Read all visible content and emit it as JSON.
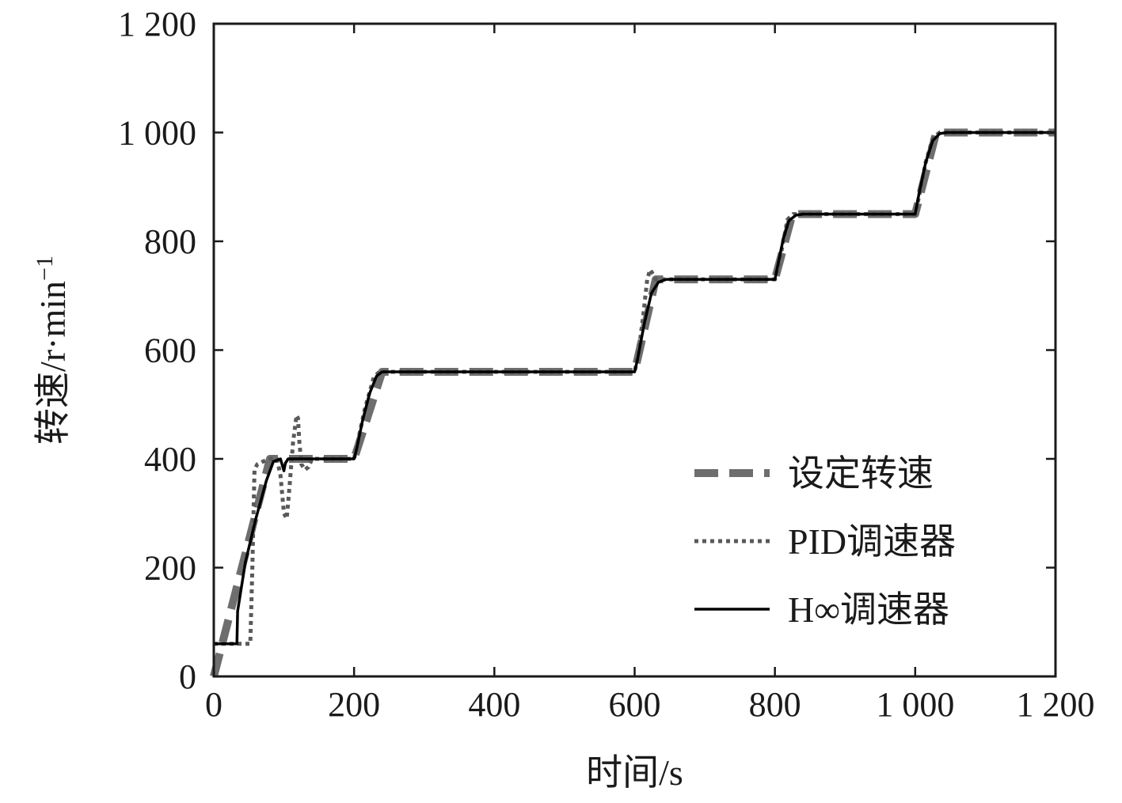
{
  "chart_data": {
    "type": "line",
    "xlabel": "时间/s",
    "ylabel": "转速/r·min",
    "ylabel_sup": "−1",
    "xlim": [
      0,
      1200
    ],
    "ylim": [
      0,
      1200
    ],
    "x_ticks": [
      0,
      200,
      400,
      600,
      800,
      1000,
      1200
    ],
    "y_ticks": [
      0,
      200,
      400,
      600,
      800,
      1000,
      1200
    ],
    "x_tick_labels": [
      "0",
      "200",
      "400",
      "600",
      "800",
      "1 000",
      "1 200"
    ],
    "y_tick_labels": [
      "0",
      "200",
      "400",
      "600",
      "800",
      "1 000",
      "1 200"
    ],
    "grid": false,
    "legend_position": "bottom-right",
    "series": [
      {
        "name": "设定转速",
        "style": "dashed",
        "color": "#6e6e6e",
        "x": [
          0,
          80,
          200,
          240,
          600,
          630,
          800,
          825,
          1000,
          1030,
          1200
        ],
        "y": [
          0,
          400,
          400,
          560,
          560,
          730,
          730,
          850,
          850,
          1000,
          1000
        ]
      },
      {
        "name": "PID调速器",
        "style": "dotted",
        "color": "#5a5a5a",
        "x": [
          0,
          52,
          55,
          58,
          62,
          70,
          80,
          90,
          95,
          100,
          104,
          108,
          113,
          118,
          120,
          122,
          125,
          130,
          135,
          140,
          150,
          195,
          200,
          205,
          215,
          228,
          236,
          245,
          600,
          605,
          612,
          618,
          622,
          626,
          630,
          640,
          650,
          800,
          805,
          812,
          818,
          826,
          835,
          850,
          1000,
          1005,
          1015,
          1025,
          1035,
          1045,
          1200
        ],
        "y": [
          60,
          60,
          200,
          380,
          390,
          395,
          400,
          400,
          370,
          300,
          290,
          350,
          430,
          480,
          475,
          430,
          390,
          380,
          385,
          400,
          400,
          400,
          400,
          430,
          490,
          550,
          560,
          560,
          560,
          590,
          660,
          730,
          748,
          740,
          730,
          730,
          730,
          730,
          755,
          800,
          840,
          850,
          850,
          850,
          850,
          880,
          945,
          990,
          1000,
          1000,
          1000
        ]
      },
      {
        "name": "H∞调速器",
        "style": "solid",
        "color": "#000000",
        "x": [
          0,
          33,
          34,
          45,
          60,
          75,
          85,
          95,
          100,
          102,
          106,
          112,
          130,
          200,
          204,
          212,
          222,
          232,
          240,
          250,
          600,
          604,
          614,
          624,
          634,
          645,
          655,
          800,
          804,
          812,
          820,
          830,
          840,
          1000,
          1005,
          1015,
          1025,
          1035,
          1045,
          1200
        ],
        "y": [
          60,
          60,
          120,
          210,
          290,
          360,
          395,
          400,
          378,
          392,
          400,
          400,
          400,
          400,
          420,
          470,
          520,
          552,
          560,
          560,
          560,
          582,
          650,
          705,
          725,
          730,
          730,
          730,
          755,
          805,
          838,
          848,
          850,
          850,
          885,
          945,
          985,
          998,
          1000,
          1000
        ]
      }
    ]
  }
}
